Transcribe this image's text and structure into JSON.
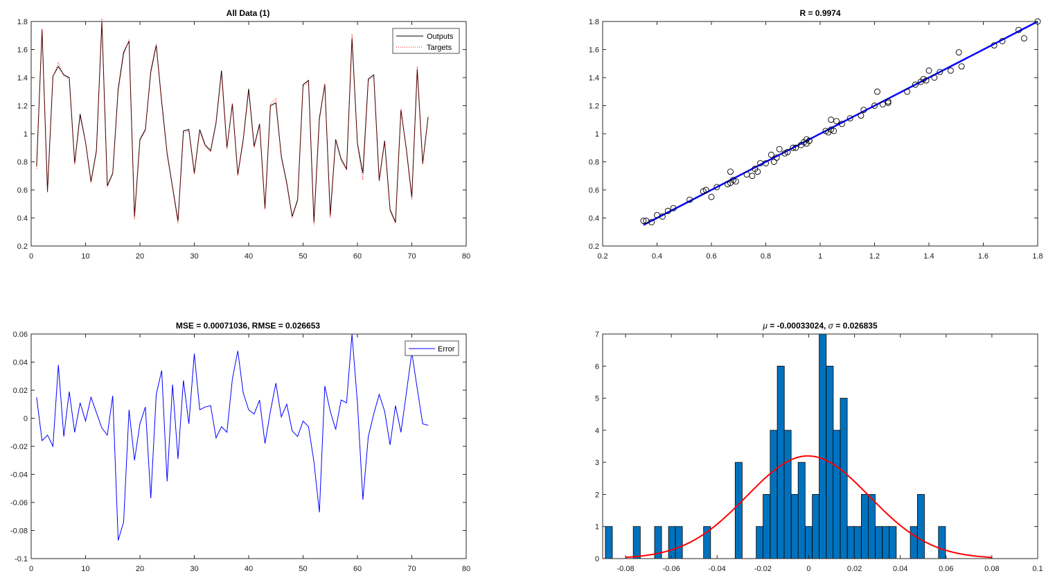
{
  "chart_data": [
    {
      "type": "line",
      "title": "All Data (1)",
      "xlabel": "",
      "ylabel": "",
      "xlim": [
        0,
        80
      ],
      "ylim": [
        0.2,
        1.8
      ],
      "xticks": [
        0,
        10,
        20,
        30,
        40,
        50,
        60,
        70,
        80
      ],
      "yticks": [
        0.2,
        0.4,
        0.6,
        0.8,
        1,
        1.2,
        1.4,
        1.6,
        1.8
      ],
      "legend": {
        "position": "top-right",
        "entries": [
          "Outputs",
          "Targets"
        ]
      },
      "series": [
        {
          "name": "Outputs",
          "color": "#000000",
          "style": "solid",
          "x": [
            1,
            2,
            3,
            4,
            5,
            6,
            7,
            8,
            9,
            10,
            11,
            12,
            13,
            14,
            15,
            16,
            17,
            18,
            19,
            20,
            21,
            22,
            23,
            24,
            25,
            26,
            27,
            28,
            29,
            30,
            31,
            32,
            33,
            34,
            35,
            36,
            37,
            38,
            39,
            40,
            41,
            42,
            43,
            44,
            45,
            46,
            47,
            48,
            49,
            50,
            51,
            52,
            53,
            54,
            55,
            56,
            57,
            58,
            59,
            60,
            61,
            62,
            63,
            64,
            65,
            66,
            67,
            68,
            69,
            70,
            71,
            72,
            73
          ],
          "values": [
            0.77,
            1.74,
            0.59,
            1.41,
            1.48,
            1.42,
            1.4,
            0.79,
            1.14,
            0.94,
            0.66,
            0.88,
            1.8,
            0.63,
            0.72,
            1.32,
            1.58,
            1.66,
            0.41,
            0.96,
            1.03,
            1.44,
            1.63,
            1.23,
            0.86,
            0.62,
            0.38,
            1.02,
            1.03,
            0.72,
            1.03,
            0.92,
            0.88,
            1.08,
            1.45,
            0.9,
            1.21,
            0.71,
            0.96,
            1.32,
            0.91,
            1.07,
            0.47,
            1.2,
            1.22,
            0.84,
            0.65,
            0.41,
            0.53,
            1.35,
            1.38,
            0.37,
            1.11,
            1.35,
            0.42,
            0.96,
            0.82,
            0.75,
            1.68,
            0.93,
            0.72,
            1.39,
            1.42,
            0.67,
            0.95,
            0.46,
            0.37,
            1.17,
            0.89,
            0.55,
            1.46,
            0.79,
            1.12
          ]
        },
        {
          "name": "Targets",
          "color": "#ff0000",
          "style": "dotted",
          "x": [
            1,
            2,
            3,
            4,
            5,
            6,
            7,
            8,
            9,
            10,
            11,
            12,
            13,
            14,
            15,
            16,
            17,
            18,
            19,
            20,
            21,
            22,
            23,
            24,
            25,
            26,
            27,
            28,
            29,
            30,
            31,
            32,
            33,
            34,
            35,
            36,
            37,
            38,
            39,
            40,
            41,
            42,
            43,
            44,
            45,
            46,
            47,
            48,
            49,
            50,
            51,
            52,
            53,
            54,
            55,
            56,
            57,
            58,
            59,
            60,
            61,
            62,
            63,
            64,
            65,
            66,
            67,
            68,
            69,
            70,
            71,
            72,
            73
          ],
          "values": [
            0.75,
            1.75,
            0.58,
            1.4,
            1.51,
            1.41,
            1.39,
            0.78,
            1.12,
            0.94,
            0.65,
            0.87,
            1.82,
            0.62,
            0.71,
            1.3,
            1.56,
            1.67,
            0.39,
            0.95,
            1.02,
            1.46,
            1.64,
            1.21,
            0.85,
            0.61,
            0.36,
            1.01,
            1.02,
            0.71,
            1.02,
            0.91,
            0.87,
            1.07,
            1.43,
            0.89,
            1.22,
            0.7,
            0.95,
            1.3,
            0.9,
            1.06,
            0.46,
            1.21,
            1.25,
            0.83,
            0.64,
            0.4,
            0.52,
            1.34,
            1.37,
            0.35,
            1.09,
            1.36,
            0.4,
            0.95,
            0.81,
            0.74,
            1.71,
            0.92,
            0.67,
            1.38,
            1.41,
            0.66,
            0.94,
            0.45,
            0.36,
            1.18,
            0.88,
            0.53,
            1.48,
            0.78,
            1.12
          ]
        }
      ]
    },
    {
      "type": "scatter",
      "title": "R = 0.9974",
      "xlabel": "",
      "ylabel": "",
      "xlim": [
        0.2,
        1.8
      ],
      "ylim": [
        0.2,
        1.8
      ],
      "xticks": [
        0.2,
        0.4,
        0.6,
        0.8,
        1,
        1.2,
        1.4,
        1.6,
        1.8
      ],
      "yticks": [
        0.2,
        0.4,
        0.6,
        0.8,
        1,
        1.2,
        1.4,
        1.6,
        1.8
      ],
      "fit_line": {
        "x": [
          0.35,
          1.8
        ],
        "y": [
          0.35,
          1.8
        ],
        "color": "#0000ff"
      },
      "points": {
        "x": [
          0.35,
          0.36,
          0.38,
          0.4,
          0.42,
          0.44,
          0.46,
          0.52,
          0.57,
          0.6,
          0.62,
          0.67,
          0.67,
          0.68,
          0.69,
          0.73,
          0.75,
          0.76,
          0.77,
          0.78,
          0.8,
          0.83,
          0.84,
          0.85,
          0.87,
          0.88,
          0.9,
          0.91,
          0.93,
          0.94,
          0.95,
          0.95,
          0.96,
          1.02,
          1.03,
          1.04,
          1.04,
          1.05,
          1.08,
          1.11,
          1.15,
          1.16,
          1.2,
          1.21,
          1.23,
          1.25,
          1.32,
          1.35,
          1.37,
          1.38,
          1.39,
          1.4,
          1.42,
          1.44,
          1.48,
          1.51,
          1.52,
          1.64,
          1.67,
          1.73,
          1.75,
          1.8,
          1.06,
          0.96,
          1.25,
          0.82,
          0.66,
          0.58
        ],
        "y": [
          0.38,
          0.38,
          0.37,
          0.42,
          0.41,
          0.45,
          0.47,
          0.53,
          0.59,
          0.55,
          0.62,
          0.73,
          0.65,
          0.67,
          0.66,
          0.71,
          0.7,
          0.75,
          0.73,
          0.79,
          0.79,
          0.8,
          0.83,
          0.89,
          0.86,
          0.87,
          0.9,
          0.9,
          0.92,
          0.94,
          0.93,
          0.96,
          0.95,
          1.02,
          1.01,
          1.03,
          1.1,
          1.02,
          1.07,
          1.11,
          1.13,
          1.17,
          1.2,
          1.3,
          1.21,
          1.22,
          1.3,
          1.35,
          1.37,
          1.39,
          1.38,
          1.45,
          1.4,
          1.44,
          1.45,
          1.58,
          1.48,
          1.63,
          1.66,
          1.74,
          1.68,
          1.8,
          1.09,
          0.95,
          1.23,
          0.85,
          0.64,
          0.6
        ]
      }
    },
    {
      "type": "line",
      "title": "MSE = 0.00071036, RMSE = 0.026653",
      "xlabel": "",
      "ylabel": "",
      "xlim": [
        0,
        80
      ],
      "ylim": [
        -0.1,
        0.06
      ],
      "xticks": [
        0,
        10,
        20,
        30,
        40,
        50,
        60,
        70,
        80
      ],
      "yticks": [
        -0.1,
        -0.08,
        -0.06,
        -0.04,
        -0.02,
        0,
        0.02,
        0.04,
        0.06
      ],
      "legend": {
        "position": "top-right",
        "entries": [
          "Error"
        ]
      },
      "series": [
        {
          "name": "Error",
          "color": "#0000ff",
          "x": [
            1,
            2,
            3,
            4,
            5,
            6,
            7,
            8,
            9,
            10,
            11,
            12,
            13,
            14,
            15,
            16,
            17,
            18,
            19,
            20,
            21,
            22,
            23,
            24,
            25,
            26,
            27,
            28,
            29,
            30,
            31,
            32,
            33,
            34,
            35,
            36,
            37,
            38,
            39,
            40,
            41,
            42,
            43,
            44,
            45,
            46,
            47,
            48,
            49,
            50,
            51,
            52,
            53,
            54,
            55,
            56,
            57,
            58,
            59,
            60,
            61,
            62,
            63,
            64,
            65,
            66,
            67,
            68,
            69,
            70,
            71,
            72,
            73
          ],
          "values": [
            0.015,
            -0.016,
            -0.012,
            -0.02,
            0.038,
            -0.013,
            0.019,
            -0.01,
            0.011,
            -0.002,
            0.015,
            0.004,
            -0.007,
            -0.012,
            0.016,
            -0.087,
            -0.074,
            0.006,
            -0.03,
            -0.004,
            0.008,
            -0.057,
            0.017,
            0.034,
            -0.045,
            0.024,
            -0.029,
            0.027,
            -0.004,
            0.046,
            0.006,
            0.008,
            0.009,
            -0.014,
            -0.006,
            -0.01,
            0.028,
            0.048,
            0.018,
            0.006,
            0.003,
            0.013,
            -0.018,
            0.005,
            0.025,
            0.001,
            0.01,
            -0.009,
            -0.013,
            -0.002,
            -0.006,
            -0.031,
            -0.067,
            0.023,
            0.005,
            -0.008,
            0.013,
            0.011,
            0.06,
            0.011,
            -0.058,
            -0.013,
            0.003,
            0.017,
            0.005,
            -0.019,
            0.009,
            -0.01,
            0.018,
            0.047,
            0.021,
            -0.004,
            -0.005
          ]
        }
      ]
    },
    {
      "type": "bar",
      "title_main": "μ = -0.00033024, σ = 0.026835",
      "title_mu": "μ",
      "title_mu_value": " = -0.00033024, ",
      "title_sigma": "σ",
      "title_sigma_value": " = 0.026835",
      "xlabel": "",
      "ylabel": "",
      "xlim": [
        -0.09,
        0.1
      ],
      "ylim": [
        0,
        7
      ],
      "xticks": [
        -0.08,
        -0.06,
        -0.04,
        -0.02,
        0,
        0.02,
        0.04,
        0.06,
        0.08,
        0.1
      ],
      "yticks": [
        0,
        1,
        2,
        3,
        4,
        5,
        6,
        7
      ],
      "bin_width": 0.00306,
      "bin_centers": [
        -0.0873,
        -0.0751,
        -0.0658,
        -0.0597,
        -0.0567,
        -0.0444,
        -0.0306,
        -0.0214,
        -0.0184,
        -0.0153,
        -0.0122,
        -0.0092,
        -0.0061,
        -0.0031,
        0.0,
        0.0031,
        0.0061,
        0.0092,
        0.0122,
        0.0153,
        0.0184,
        0.0214,
        0.0245,
        0.0275,
        0.0306,
        0.0337,
        0.0367,
        0.0459,
        0.049,
        0.0582
      ],
      "values": [
        1,
        1,
        1,
        1,
        1,
        1,
        3,
        1,
        2,
        4,
        6,
        4,
        2,
        3,
        1,
        2,
        7,
        6,
        4,
        5,
        1,
        1,
        2,
        2,
        1,
        1,
        1,
        1,
        2,
        1
      ],
      "bar_color": "#0072bd",
      "normal_fit": {
        "mu": -0.00033024,
        "sigma": 0.026835,
        "peak": 3.2,
        "x_range": [
          -0.08,
          0.08
        ],
        "color": "#ff0000"
      }
    }
  ]
}
